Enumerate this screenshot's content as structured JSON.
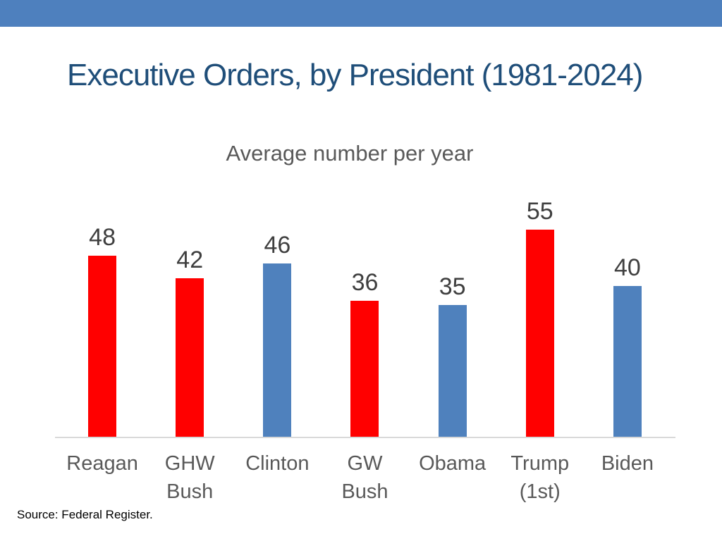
{
  "slide": {
    "title": "Executive Orders, by President (1981-2024)",
    "source": "Source: Federal Register."
  },
  "chart_data": {
    "type": "bar",
    "title": "Average number per year",
    "xlabel": "",
    "ylabel": "",
    "categories": [
      "Reagan",
      "GHW\nBush",
      "Clinton",
      "GW\nBush",
      "Obama",
      "Trump\n(1st)",
      "Biden"
    ],
    "values": [
      48,
      42,
      46,
      36,
      35,
      55,
      40
    ],
    "bar_colors": [
      "#FF0000",
      "#FF0000",
      "#4F81BD",
      "#FF0000",
      "#4F81BD",
      "#FF0000",
      "#4F81BD"
    ],
    "ylim": [
      0,
      60
    ],
    "grid": false,
    "legend": false,
    "data_labels": true
  },
  "colors": {
    "accent_band": "#4E80BE",
    "title_text": "#1F4E79",
    "subtitle_text": "#595959",
    "category_label_text": "#595959",
    "value_label_text": "#3F3F3F",
    "axis_line": "#D9D9D9",
    "bar_red": "#FF0000",
    "bar_blue": "#4F81BD",
    "source_text": "#000000"
  }
}
